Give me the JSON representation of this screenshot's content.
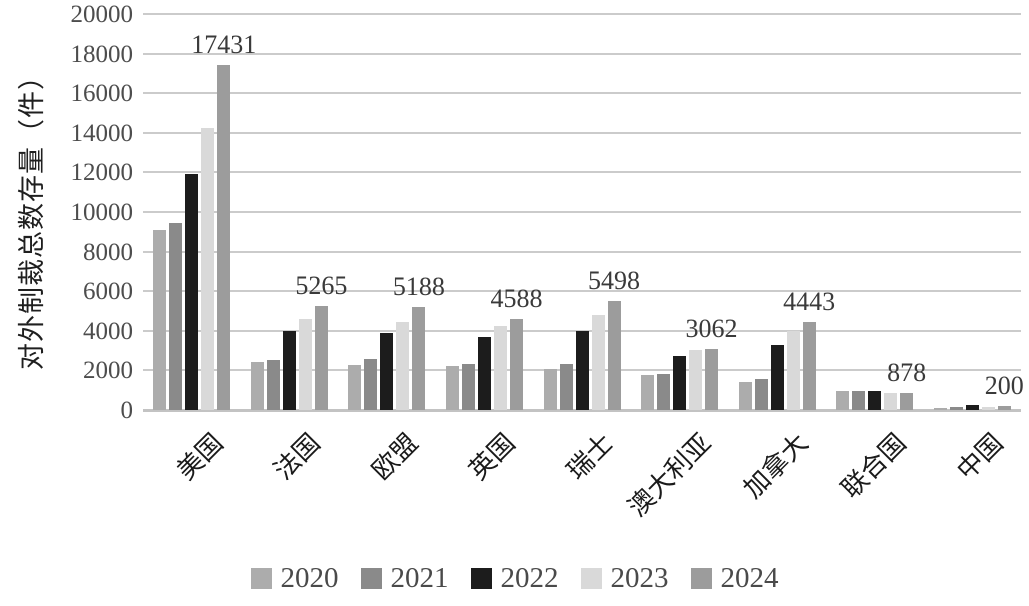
{
  "chart_data": {
    "type": "bar",
    "title": "",
    "ylabel": "对外制裁总数存量（件）",
    "xlabel": "",
    "ylim": [
      0,
      20000
    ],
    "y_tick_step": 2000,
    "y_ticks": [
      "0",
      "2000",
      "4000",
      "6000",
      "8000",
      "10000",
      "12000",
      "14000",
      "16000",
      "18000",
      "20000"
    ],
    "grid": true,
    "legend_position": "bottom",
    "categories": [
      "美国",
      "法国",
      "欧盟",
      "英国",
      "瑞士",
      "澳大利亚",
      "加拿大",
      "联合国",
      "中国"
    ],
    "series": [
      {
        "name": "2020",
        "color": "#acacac",
        "values": [
          9100,
          2400,
          2250,
          2200,
          2050,
          1750,
          1400,
          950,
          100
        ]
      },
      {
        "name": "2021",
        "color": "#8a8a8a",
        "values": [
          9450,
          2550,
          2600,
          2300,
          2300,
          1800,
          1550,
          950,
          140
        ]
      },
      {
        "name": "2022",
        "color": "#1c1c1c",
        "values": [
          11900,
          4000,
          3900,
          3700,
          4000,
          2750,
          3300,
          950,
          250
        ]
      },
      {
        "name": "2023",
        "color": "#d9d9d9",
        "values": [
          14250,
          4600,
          4450,
          4250,
          4800,
          3050,
          4000,
          880,
          170
        ]
      },
      {
        "name": "2024",
        "color": "#9c9c9c",
        "values": [
          17431,
          5265,
          5188,
          4588,
          5498,
          3062,
          4443,
          878,
          200
        ]
      }
    ],
    "data_labels": {
      "on_series": "2024",
      "values": [
        "17431",
        "5265",
        "5188",
        "4588",
        "5498",
        "3062",
        "4443",
        "878",
        "200"
      ]
    },
    "colors": {
      "gridline": "#cbcbcb",
      "axis_line": "#c3c3c3",
      "tick_text": "#4d4d4d",
      "data_label_text": "#3a3a3a",
      "category_text": "#1a1a1a",
      "legend_text": "#4a4a4a"
    }
  }
}
